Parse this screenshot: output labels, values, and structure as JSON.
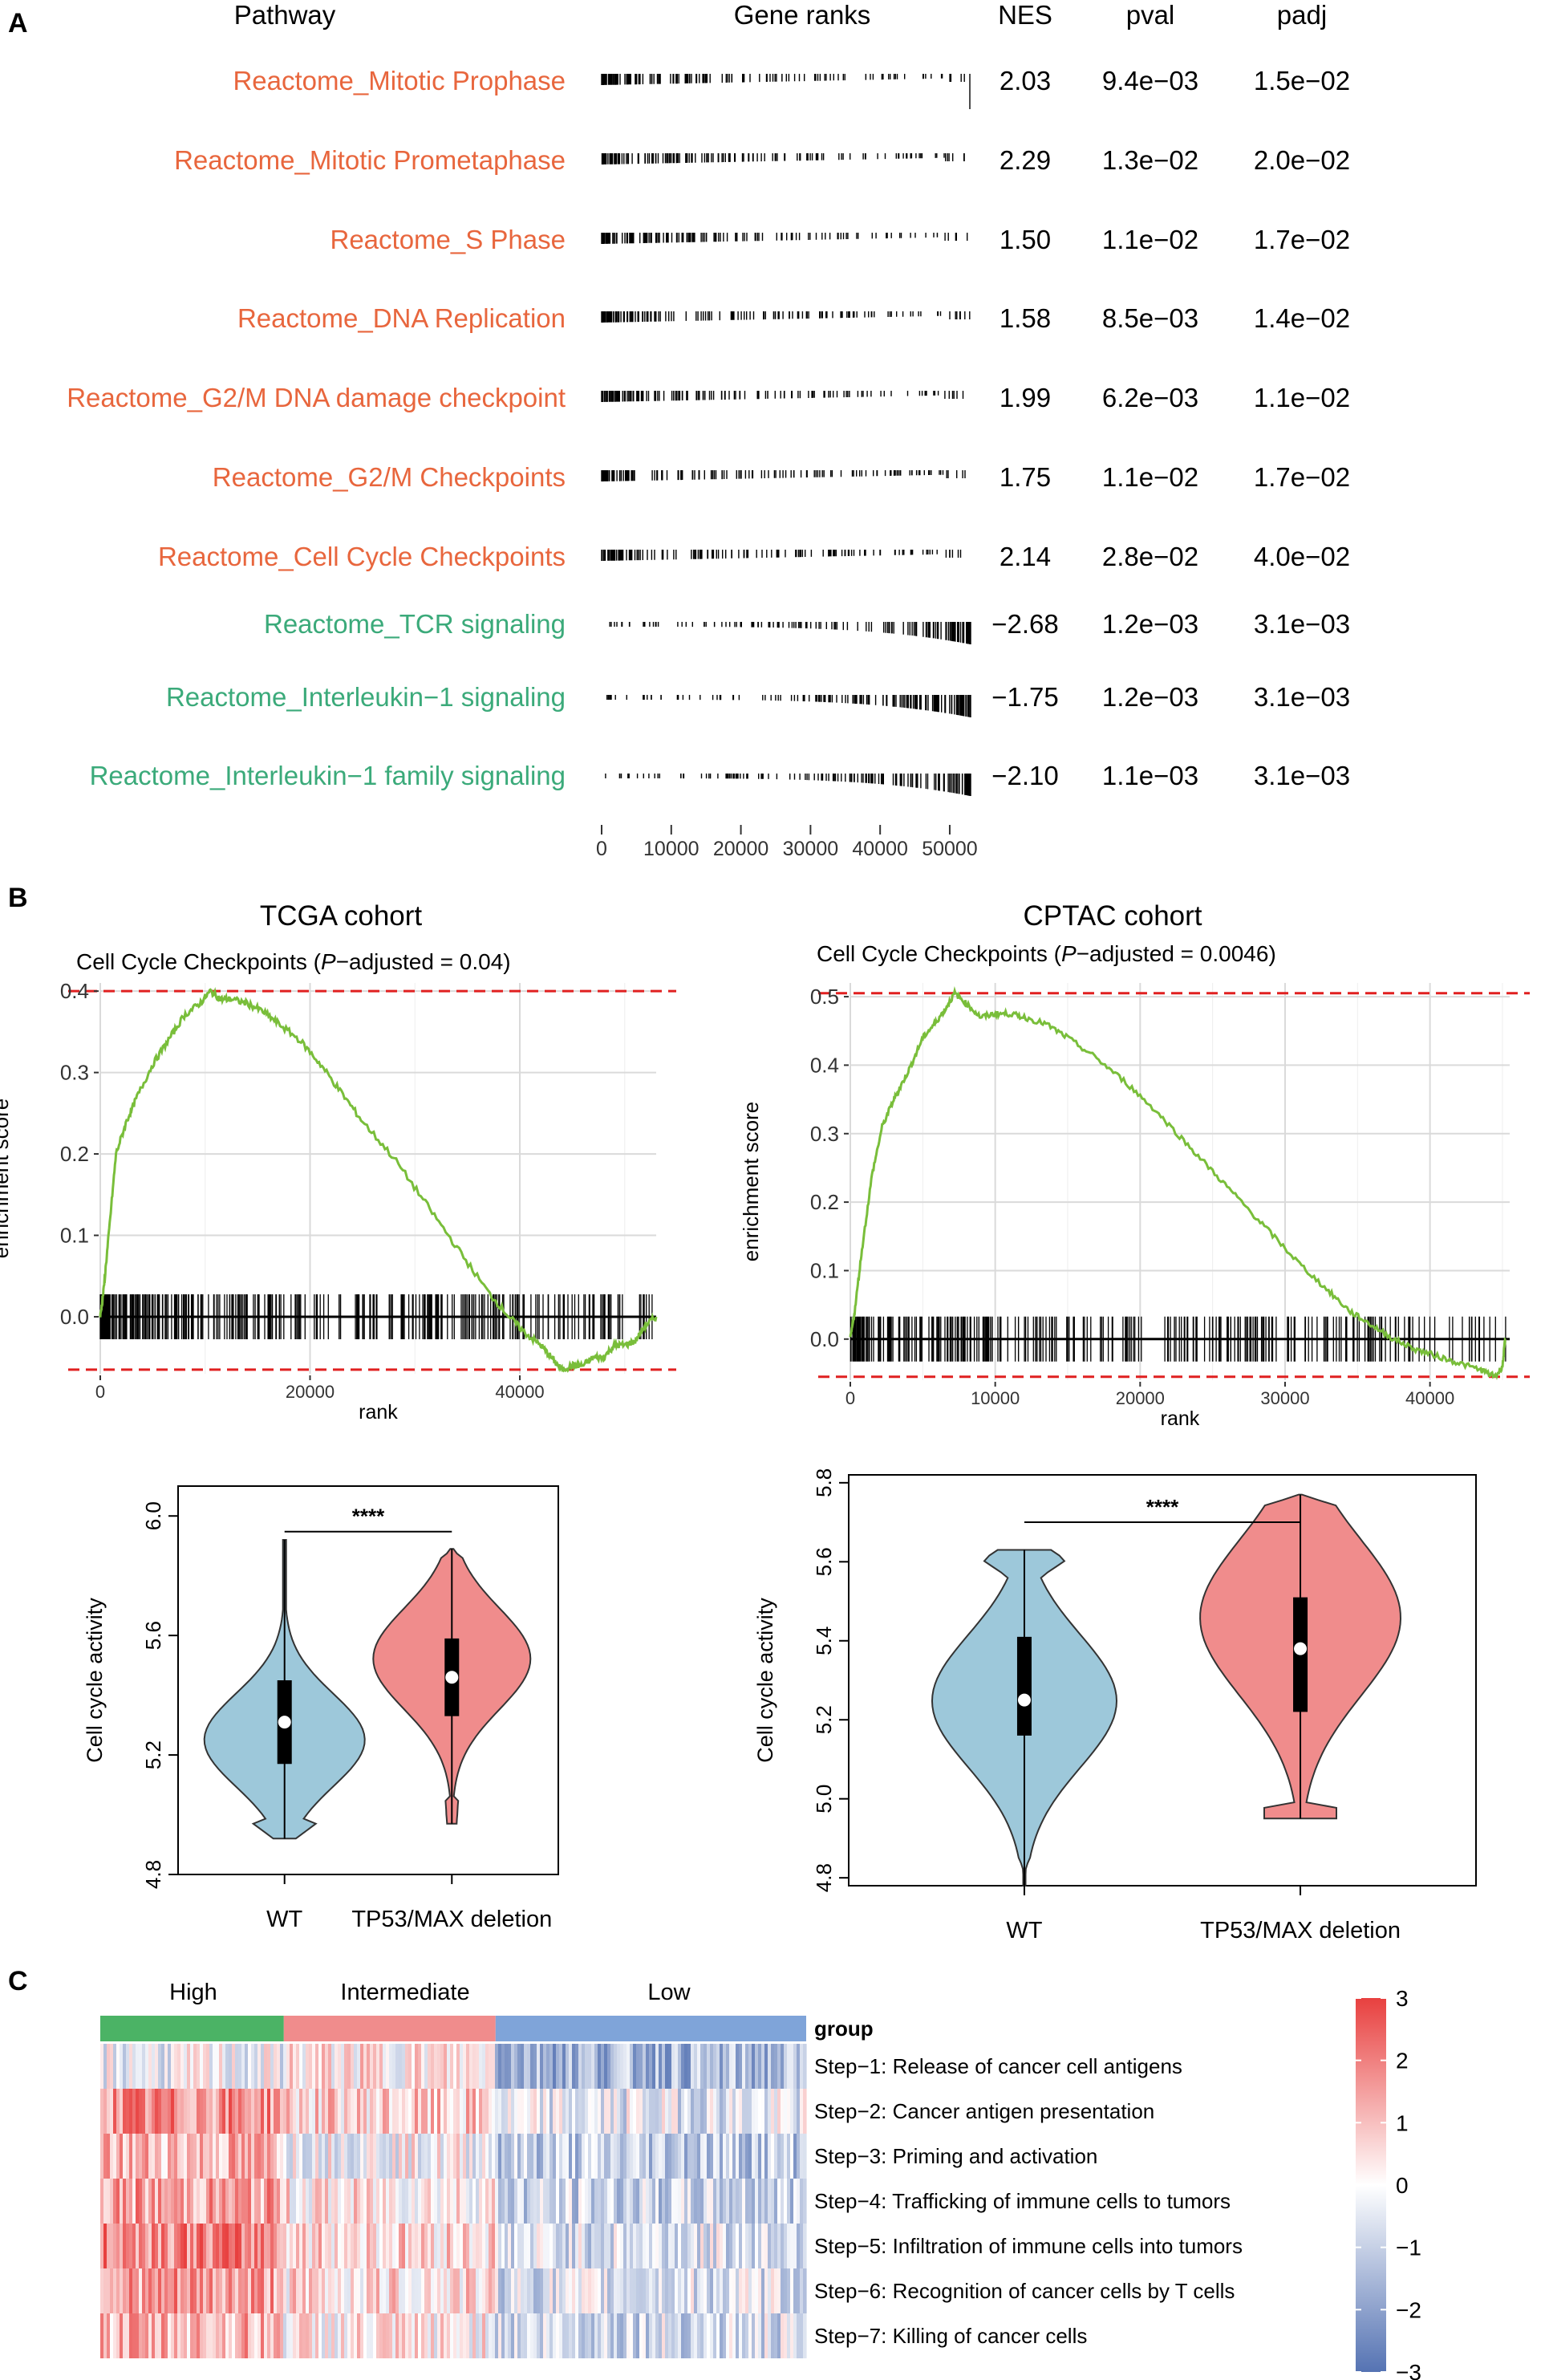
{
  "colors": {
    "up": "#E8663D",
    "down": "#3BAA7A",
    "es_line": "#79BE3A",
    "ref_line": "#E02020",
    "violin_wt": "#9DC8DA",
    "violin_del": "#F08C8C",
    "group_high": "#4BB365",
    "group_int": "#F08C8C",
    "group_low": "#7FA4D9",
    "heat_high": "#E8403F",
    "heat_low": "#5573B3"
  },
  "panel_a": {
    "label": "A",
    "headers": {
      "pathway": "Pathway",
      "ranks": "Gene ranks",
      "nes": "NES",
      "pval": "pval",
      "padj": "padj"
    },
    "x_ticks": [
      "0",
      "10000",
      "20000",
      "30000",
      "40000",
      "50000"
    ]
  },
  "panel_b": {
    "label": "B",
    "tcga_title": "TCGA cohort",
    "cptac_title": "CPTAC cohort",
    "tcga_subtitle_pre": "Cell Cycle Checkpoints (",
    "tcga_subtitle_p": "P",
    "tcga_subtitle_post": "−adjusted = 0.04)",
    "cptac_subtitle_pre": "Cell Cycle Checkpoints (",
    "cptac_subtitle_p": "P",
    "cptac_subtitle_post": "−adjusted = 0.0046)",
    "violin_ylabel": "Cell cycle activity",
    "significance": "****",
    "groups": [
      "WT",
      "TP53/MAX deletion"
    ]
  },
  "panel_c": {
    "label": "C",
    "groups": [
      "High",
      "Intermediate",
      "Low"
    ],
    "group_row_label": "group",
    "legend_ticks": [
      "3",
      "2",
      "1",
      "0",
      "−1",
      "−2",
      "−3"
    ]
  },
  "chart_data": [
    {
      "id": "gsea_table",
      "type": "table",
      "columns": [
        "Pathway",
        "Gene ranks",
        "NES",
        "pval",
        "padj"
      ],
      "x_range": [
        0,
        53000
      ],
      "rows": [
        {
          "pathway": "Reactome_Mitotic Prophase",
          "direction": "up",
          "nes": "2.03",
          "pval": "9.4e−03",
          "padj": "1.5e−02"
        },
        {
          "pathway": "Reactome_Mitotic Prometaphase",
          "direction": "up",
          "nes": "2.29",
          "pval": "1.3e−02",
          "padj": "2.0e−02"
        },
        {
          "pathway": "Reactome_S Phase",
          "direction": "up",
          "nes": "1.50",
          "pval": "1.1e−02",
          "padj": "1.7e−02"
        },
        {
          "pathway": "Reactome_DNA Replication",
          "direction": "up",
          "nes": "1.58",
          "pval": "8.5e−03",
          "padj": "1.4e−02"
        },
        {
          "pathway": "Reactome_G2/M DNA damage checkpoint",
          "direction": "up",
          "nes": "1.99",
          "pval": "6.2e−03",
          "padj": "1.1e−02"
        },
        {
          "pathway": "Reactome_G2/M Checkpoints",
          "direction": "up",
          "nes": "1.75",
          "pval": "1.1e−02",
          "padj": "1.7e−02"
        },
        {
          "pathway": "Reactome_Cell Cycle Checkpoints",
          "direction": "up",
          "nes": "2.14",
          "pval": "2.8e−02",
          "padj": "4.0e−02"
        },
        {
          "pathway": "Reactome_TCR signaling",
          "direction": "down",
          "nes": "−2.68",
          "pval": "1.2e−03",
          "padj": "3.1e−03"
        },
        {
          "pathway": "Reactome_Interleukin−1 signaling",
          "direction": "down",
          "nes": "−1.75",
          "pval": "1.2e−03",
          "padj": "3.1e−03"
        },
        {
          "pathway": "Reactome_Interleukin−1 family signaling",
          "direction": "down",
          "nes": "−2.10",
          "pval": "1.1e−03",
          "padj": "3.1e−03"
        }
      ]
    },
    {
      "id": "tcga_enrichment",
      "type": "line",
      "title": "Cell Cycle Checkpoints (P−adjusted = 0.04)",
      "xlabel": "rank",
      "ylabel": "enrichment score",
      "xlim": [
        0,
        53000
      ],
      "ylim": [
        -0.07,
        0.41
      ],
      "x_ticks": [
        0,
        20000,
        40000
      ],
      "x_tick_labels": [
        "0",
        "20000",
        "40000"
      ],
      "y_ticks": [
        0.0,
        0.1,
        0.2,
        0.3,
        0.4
      ],
      "y_tick_labels": [
        "0.0",
        "0.1",
        "0.2",
        "0.3",
        "0.4"
      ],
      "max_es": 0.4,
      "min_es": -0.065,
      "x": [
        0,
        300,
        800,
        1500,
        2500,
        3500,
        5000,
        6500,
        8000,
        9500,
        10500,
        11500,
        12500,
        14000,
        15500,
        17000,
        19000,
        21000,
        23000,
        25000,
        28000,
        31000,
        34000,
        37000,
        39000,
        40500,
        42000,
        43000,
        44000,
        45000,
        46000,
        47000,
        48000,
        49000,
        50000,
        51000,
        52000,
        53000
      ],
      "y": [
        0.0,
        0.03,
        0.1,
        0.2,
        0.24,
        0.27,
        0.31,
        0.34,
        0.37,
        0.385,
        0.4,
        0.39,
        0.39,
        0.385,
        0.375,
        0.36,
        0.34,
        0.31,
        0.275,
        0.24,
        0.195,
        0.14,
        0.085,
        0.03,
        0.0,
        -0.02,
        -0.035,
        -0.05,
        -0.065,
        -0.06,
        -0.06,
        -0.05,
        -0.05,
        -0.035,
        -0.035,
        -0.03,
        -0.01,
        0.0
      ]
    },
    {
      "id": "cptac_enrichment",
      "type": "line",
      "title": "Cell Cycle Checkpoints (P−adjusted = 0.0046)",
      "xlabel": "rank",
      "ylabel": "enrichment score",
      "xlim": [
        0,
        45500
      ],
      "ylim": [
        -0.06,
        0.52
      ],
      "x_ticks": [
        0,
        10000,
        20000,
        30000,
        40000
      ],
      "x_tick_labels": [
        "0",
        "10000",
        "20000",
        "30000",
        "40000"
      ],
      "y_ticks": [
        0.0,
        0.1,
        0.2,
        0.3,
        0.4,
        0.5
      ],
      "y_tick_labels": [
        "0.0",
        "0.1",
        "0.2",
        "0.3",
        "0.4",
        "0.5"
      ],
      "max_es": 0.505,
      "min_es": -0.055,
      "x": [
        0,
        300,
        800,
        1500,
        2200,
        3000,
        3500,
        4200,
        5000,
        5800,
        6500,
        7200,
        8000,
        9000,
        10000,
        11000,
        12000,
        13500,
        15000,
        17000,
        19000,
        21000,
        23000,
        25000,
        27000,
        29000,
        31000,
        33000,
        34500,
        36000,
        37500,
        39000,
        40500,
        42000,
        43500,
        44500,
        45000,
        45200
      ],
      "y": [
        0.0,
        0.04,
        0.13,
        0.24,
        0.31,
        0.35,
        0.37,
        0.4,
        0.44,
        0.46,
        0.48,
        0.505,
        0.49,
        0.47,
        0.475,
        0.475,
        0.47,
        0.46,
        0.44,
        0.41,
        0.375,
        0.335,
        0.29,
        0.245,
        0.2,
        0.155,
        0.11,
        0.07,
        0.04,
        0.02,
        0.0,
        -0.015,
        -0.025,
        -0.035,
        -0.045,
        -0.055,
        -0.04,
        0.0
      ]
    },
    {
      "id": "tcga_violin",
      "type": "violin",
      "ylabel": "Cell cycle activity",
      "ylim": [
        4.8,
        6.1
      ],
      "y_ticks": [
        4.8,
        5.2,
        5.6,
        6.0
      ],
      "y_tick_labels": [
        "4.8",
        "5.2",
        "5.6",
        "6.0"
      ],
      "significance": "****",
      "groups": [
        {
          "name": "WT",
          "min": 4.92,
          "q1": 5.17,
          "median": 5.31,
          "q3": 5.45,
          "max": 5.92
        },
        {
          "name": "TP53/MAX deletion",
          "min": 4.97,
          "q1": 5.33,
          "median": 5.46,
          "q3": 5.59,
          "max": 5.89
        }
      ]
    },
    {
      "id": "cptac_violin",
      "type": "violin",
      "ylabel": "Cell cycle activity",
      "ylim": [
        4.78,
        5.82
      ],
      "y_ticks": [
        4.8,
        5.0,
        5.2,
        5.4,
        5.6,
        5.8
      ],
      "y_tick_labels": [
        "4.8",
        "5.0",
        "5.2",
        "5.4",
        "5.6",
        "5.8"
      ],
      "significance": "****",
      "groups": [
        {
          "name": "WT",
          "min": 4.78,
          "q1": 5.16,
          "median": 5.25,
          "q3": 5.41,
          "max": 5.63
        },
        {
          "name": "TP53/MAX deletion",
          "min": 4.95,
          "q1": 5.22,
          "median": 5.38,
          "q3": 5.51,
          "max": 5.77
        }
      ]
    },
    {
      "id": "immune_cycle_heatmap",
      "type": "heatmap",
      "colorbar_range": [
        -3,
        3
      ],
      "colorbar_ticks": [
        3,
        2,
        1,
        0,
        -1,
        -2,
        -3
      ],
      "columns_groups": [
        {
          "name": "High",
          "fraction": 0.26
        },
        {
          "name": "Intermediate",
          "fraction": 0.3
        },
        {
          "name": "Low",
          "fraction": 0.44
        }
      ],
      "rows": [
        {
          "label": "Step−1: Release of cancer cell antigens",
          "group_means": [
            -0.2,
            0.3,
            -1.3
          ]
        },
        {
          "label": "Step−2: Cancer antigen presentation",
          "group_means": [
            1.5,
            0.6,
            -0.4
          ]
        },
        {
          "label": "Step−3: Priming and activation",
          "group_means": [
            1.0,
            0.0,
            -0.9
          ]
        },
        {
          "label": "Step−4: Trafficking of immune cells to tumors",
          "group_means": [
            1.2,
            0.3,
            -0.8
          ]
        },
        {
          "label": "Step−5: Infiltration of immune cells into tumors",
          "group_means": [
            1.7,
            0.6,
            -0.5
          ]
        },
        {
          "label": "Step−6: Recognition of cancer cells by T cells",
          "group_means": [
            1.3,
            0.4,
            -0.5
          ]
        },
        {
          "label": "Step−7: Killing of cancer cells",
          "group_means": [
            1.0,
            0.2,
            -0.6
          ]
        }
      ]
    }
  ]
}
